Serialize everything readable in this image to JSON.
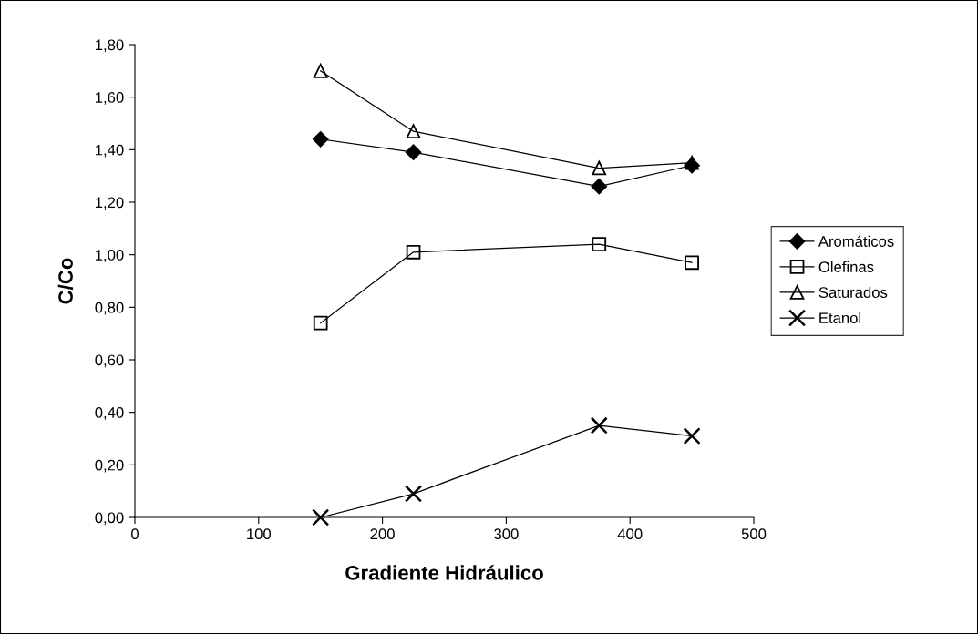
{
  "chart_data": {
    "type": "line",
    "xlabel": "Gradiente Hidráulico",
    "ylabel": "C/Co",
    "x": [
      150,
      225,
      375,
      450
    ],
    "series": [
      {
        "name": "Aromáticos",
        "color": "#000000",
        "marker": "diamond",
        "values": [
          1.44,
          1.39,
          1.26,
          1.34
        ]
      },
      {
        "name": "Olefinas",
        "color": "#000000",
        "marker": "square",
        "values": [
          0.74,
          1.01,
          1.04,
          0.97
        ]
      },
      {
        "name": "Saturados",
        "color": "#000000",
        "marker": "triangle",
        "values": [
          1.7,
          1.47,
          1.33,
          1.35
        ]
      },
      {
        "name": "Etanol",
        "color": "#000000",
        "marker": "cross",
        "values": [
          0.0,
          0.09,
          0.35,
          0.31
        ]
      }
    ],
    "xlim": [
      0,
      500
    ],
    "xticks": [
      0,
      100,
      200,
      300,
      400,
      500
    ],
    "ylim": [
      0,
      1.8
    ],
    "yticks": [
      {
        "value": 0,
        "label": "0,00"
      },
      {
        "value": 0.2,
        "label": "0,20"
      },
      {
        "value": 0.4,
        "label": "0,40"
      },
      {
        "value": 0.6,
        "label": "0,60"
      },
      {
        "value": 0.8,
        "label": "0,80"
      },
      {
        "value": 1.0,
        "label": "1,00"
      },
      {
        "value": 1.2,
        "label": "1,20"
      },
      {
        "value": 1.4,
        "label": "1,40"
      },
      {
        "value": 1.6,
        "label": "1,60"
      },
      {
        "value": 1.8,
        "label": "1,80"
      }
    ],
    "grid": false,
    "legend": "right",
    "line_style": "solid"
  }
}
